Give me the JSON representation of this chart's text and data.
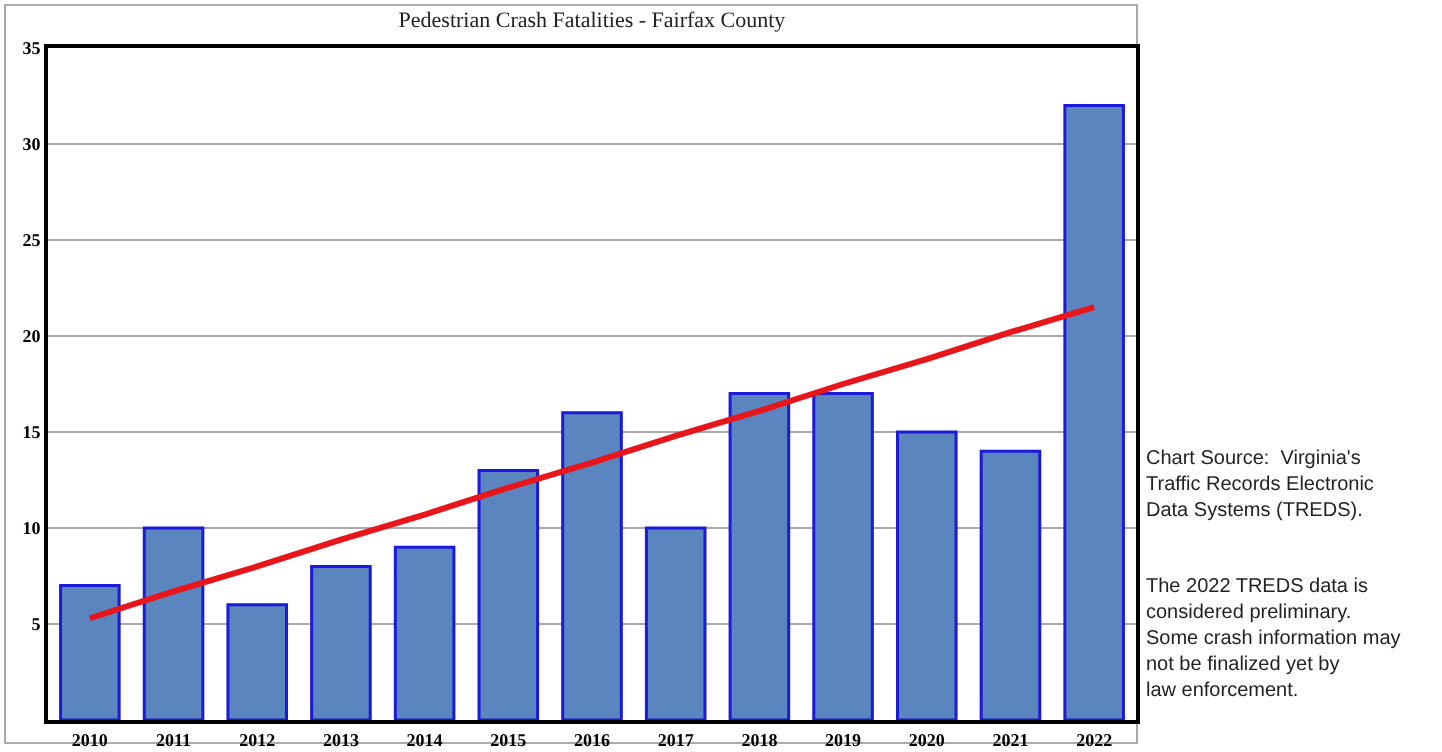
{
  "chart_data": {
    "type": "bar",
    "title": "Pedestrian Crash Fatalities - Fairfax County",
    "categories": [
      "2010",
      "2011",
      "2012",
      "2013",
      "2014",
      "2015",
      "2016",
      "2017",
      "2018",
      "2019",
      "2020",
      "2021",
      "2022"
    ],
    "series": [
      {
        "color": "#5b85bf",
        "values": [
          7,
          10,
          6,
          8,
          9,
          13,
          16,
          10,
          17,
          17,
          15,
          14,
          32
        ]
      },
      {
        "type": "line",
        "color": "#e8161b",
        "values": [
          5.3,
          6.7,
          8.0,
          9.4,
          10.7,
          12.1,
          13.4,
          14.8,
          16.1,
          17.5,
          18.8,
          20.2,
          21.5
        ],
        "marker": "none"
      }
    ],
    "ylim": [
      0,
      35
    ],
    "yticks": [
      5,
      10,
      15,
      20,
      25,
      30,
      35
    ],
    "grid": "y",
    "annotations": [
      "Chart Source:  Virginia's Traffic Records Electronic Data Systems (TREDS).",
      "The 2022 TREDS data is considered preliminary. Some crash information may not be finalized yet by law enforcement."
    ]
  }
}
